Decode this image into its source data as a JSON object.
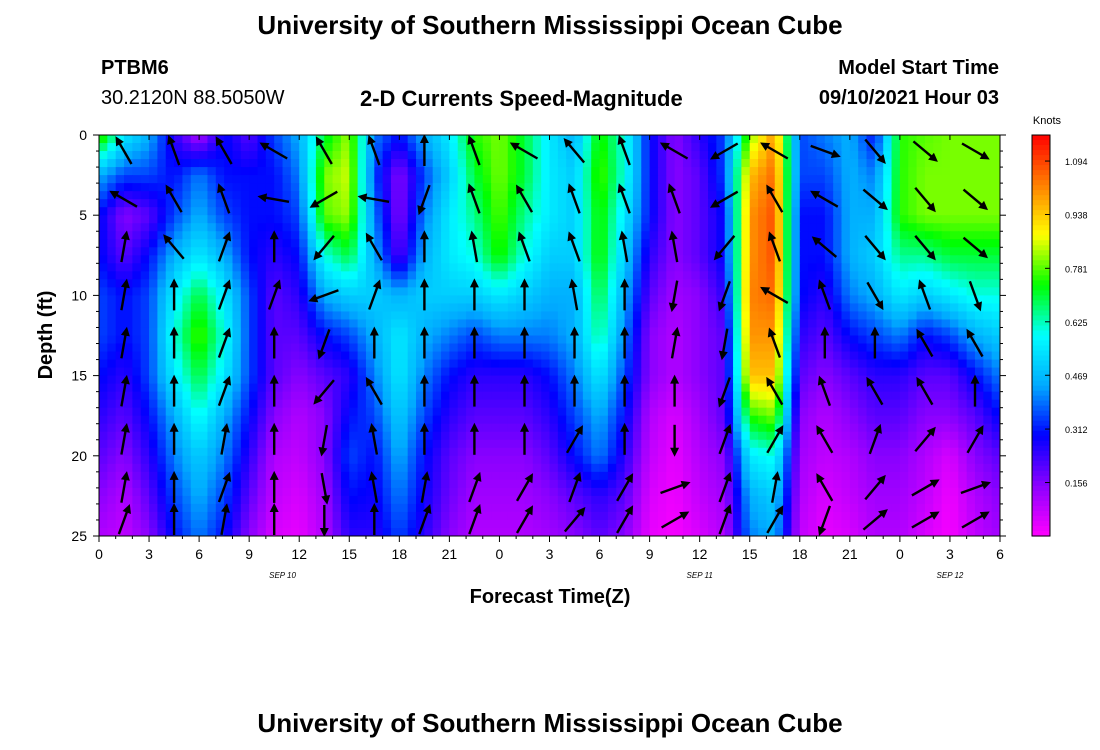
{
  "page": {
    "title_top": "University of Southern Mississippi Ocean Cube",
    "title_bottom": "University of Southern Mississippi Ocean Cube",
    "station_id": "PTBM6",
    "station_coords": "30.2120N  88.5050W",
    "plot_subtitle": "2-D Currents Speed-Magnitude",
    "model_start_label": "Model Start Time",
    "model_start_value": "09/10/2021 Hour 03"
  },
  "chart_data": {
    "type": "heatmap",
    "title": "2-D Currents Speed-Magnitude",
    "xlabel": "Forecast Time(Z)",
    "ylabel": "Depth (ft)",
    "x_range": [
      0,
      54
    ],
    "y_range": [
      0,
      25
    ],
    "y_inverted": true,
    "x_tick_labels": [
      "0",
      "3",
      "6",
      "9",
      "12",
      "15",
      "18",
      "21",
      "0",
      "3",
      "6",
      "9",
      "12",
      "15",
      "18",
      "21",
      "0",
      "3",
      "6"
    ],
    "y_tick_labels": [
      "0",
      "5",
      "10",
      "15",
      "20",
      "25"
    ],
    "date_labels": [
      {
        "text": "SEP 10",
        "x_hours": 11
      },
      {
        "text": "SEP 11",
        "x_hours": 36
      },
      {
        "text": "SEP 12",
        "x_hours": 51
      }
    ],
    "colorbar": {
      "unit": "Knots",
      "labels": [
        "1.094",
        "0.938",
        "0.781",
        "0.625",
        "0.469",
        "0.312",
        "0.156"
      ],
      "values": [
        1.094,
        0.938,
        0.781,
        0.625,
        0.469,
        0.312,
        0.156
      ],
      "range": [
        0.0,
        1.17
      ],
      "colors": [
        "#ff00ff",
        "#8c00ff",
        "#0000ff",
        "#00aaff",
        "#00ffff",
        "#00ff00",
        "#ffff00",
        "#ff8000",
        "#ff0000"
      ]
    },
    "speed_field": {
      "description": "Speed magnitude (knots) by forecast hour and depth",
      "hours": [
        0,
        1.5,
        3,
        4.5,
        6,
        7.5,
        9,
        10.5,
        12,
        13.5,
        15,
        16.5,
        18,
        19.5,
        21,
        22.5,
        24,
        25.5,
        27,
        28.5,
        30,
        31.5,
        33,
        34.5,
        36,
        37.5,
        39,
        40.5,
        42,
        43.5,
        45,
        46.5,
        48,
        49.5,
        51,
        52.5,
        54
      ],
      "depths_ft": [
        0,
        2.5,
        5,
        7.5,
        10,
        12.5,
        15,
        17.5,
        20,
        22.5,
        25
      ],
      "rows": [
        [
          0.8,
          0.55,
          0.45,
          0.25,
          0.1,
          0.3,
          0.2,
          0.35,
          0.45,
          0.7,
          0.82,
          0.4,
          0.3,
          0.45,
          0.55,
          0.75,
          0.8,
          0.7,
          0.55,
          0.45,
          0.75,
          0.6,
          0.3,
          0.15,
          0.25,
          0.35,
          0.8,
          1.0,
          0.35,
          0.4,
          0.45,
          0.3,
          0.75,
          0.78,
          0.8,
          0.8,
          0.8
        ],
        [
          0.45,
          0.35,
          0.35,
          0.3,
          0.4,
          0.3,
          0.3,
          0.3,
          0.4,
          0.8,
          0.85,
          0.35,
          0.15,
          0.35,
          0.5,
          0.7,
          0.8,
          0.7,
          0.55,
          0.5,
          0.78,
          0.6,
          0.3,
          0.15,
          0.2,
          0.35,
          0.95,
          1.05,
          0.35,
          0.35,
          0.45,
          0.4,
          0.75,
          0.8,
          0.8,
          0.8,
          0.8
        ],
        [
          0.3,
          0.15,
          0.2,
          0.35,
          0.45,
          0.35,
          0.3,
          0.3,
          0.35,
          0.78,
          0.82,
          0.4,
          0.15,
          0.4,
          0.55,
          0.65,
          0.78,
          0.65,
          0.55,
          0.5,
          0.75,
          0.55,
          0.3,
          0.15,
          0.2,
          0.3,
          1.0,
          1.08,
          0.3,
          0.3,
          0.45,
          0.45,
          0.75,
          0.8,
          0.8,
          0.8,
          0.8
        ],
        [
          0.3,
          0.2,
          0.3,
          0.45,
          0.55,
          0.45,
          0.3,
          0.25,
          0.3,
          0.6,
          0.7,
          0.45,
          0.2,
          0.45,
          0.55,
          0.6,
          0.75,
          0.6,
          0.5,
          0.5,
          0.75,
          0.5,
          0.25,
          0.15,
          0.2,
          0.3,
          1.0,
          1.08,
          0.3,
          0.3,
          0.45,
          0.5,
          0.65,
          0.65,
          0.7,
          0.7,
          0.7
        ],
        [
          0.35,
          0.3,
          0.35,
          0.55,
          0.7,
          0.55,
          0.35,
          0.2,
          0.25,
          0.45,
          0.5,
          0.5,
          0.45,
          0.5,
          0.5,
          0.5,
          0.55,
          0.5,
          0.45,
          0.45,
          0.7,
          0.45,
          0.2,
          0.12,
          0.15,
          0.25,
          1.02,
          1.05,
          0.3,
          0.25,
          0.4,
          0.45,
          0.55,
          0.5,
          0.55,
          0.6,
          0.6
        ],
        [
          0.35,
          0.3,
          0.35,
          0.6,
          0.78,
          0.6,
          0.35,
          0.2,
          0.2,
          0.3,
          0.35,
          0.45,
          0.55,
          0.45,
          0.4,
          0.35,
          0.4,
          0.4,
          0.4,
          0.45,
          0.65,
          0.4,
          0.15,
          0.1,
          0.15,
          0.2,
          1.0,
          1.0,
          0.25,
          0.2,
          0.3,
          0.35,
          0.4,
          0.3,
          0.35,
          0.45,
          0.5
        ],
        [
          0.3,
          0.25,
          0.35,
          0.55,
          0.7,
          0.55,
          0.35,
          0.2,
          0.15,
          0.2,
          0.25,
          0.4,
          0.55,
          0.4,
          0.3,
          0.25,
          0.25,
          0.25,
          0.3,
          0.4,
          0.55,
          0.35,
          0.15,
          0.1,
          0.15,
          0.2,
          0.95,
          0.95,
          0.2,
          0.15,
          0.2,
          0.25,
          0.25,
          0.2,
          0.2,
          0.3,
          0.4
        ],
        [
          0.25,
          0.2,
          0.3,
          0.45,
          0.6,
          0.45,
          0.3,
          0.15,
          0.1,
          0.15,
          0.3,
          0.35,
          0.5,
          0.35,
          0.25,
          0.2,
          0.2,
          0.2,
          0.25,
          0.35,
          0.45,
          0.3,
          0.1,
          0.05,
          0.12,
          0.2,
          0.75,
          0.8,
          0.15,
          0.1,
          0.15,
          0.2,
          0.2,
          0.15,
          0.15,
          0.2,
          0.3
        ],
        [
          0.2,
          0.15,
          0.25,
          0.4,
          0.5,
          0.4,
          0.25,
          0.1,
          0.08,
          0.15,
          0.35,
          0.3,
          0.45,
          0.3,
          0.2,
          0.15,
          0.15,
          0.15,
          0.2,
          0.3,
          0.4,
          0.25,
          0.08,
          0.03,
          0.1,
          0.15,
          0.55,
          0.6,
          0.12,
          0.08,
          0.1,
          0.15,
          0.15,
          0.1,
          0.05,
          0.15,
          0.2
        ],
        [
          0.15,
          0.1,
          0.2,
          0.35,
          0.45,
          0.35,
          0.2,
          0.08,
          0.05,
          0.12,
          0.3,
          0.28,
          0.4,
          0.28,
          0.18,
          0.12,
          0.12,
          0.12,
          0.15,
          0.2,
          0.25,
          0.2,
          0.05,
          0.02,
          0.08,
          0.12,
          0.45,
          0.5,
          0.1,
          0.05,
          0.08,
          0.12,
          0.12,
          0.08,
          0.02,
          0.1,
          0.15
        ],
        [
          0.1,
          0.08,
          0.15,
          0.3,
          0.4,
          0.3,
          0.15,
          0.05,
          0.03,
          0.1,
          0.25,
          0.25,
          0.35,
          0.25,
          0.15,
          0.1,
          0.1,
          0.1,
          0.12,
          0.15,
          0.2,
          0.15,
          0.03,
          0.01,
          0.05,
          0.1,
          0.4,
          0.45,
          0.08,
          0.03,
          0.05,
          0.1,
          0.1,
          0.05,
          0.01,
          0.08,
          0.12
        ]
      ]
    },
    "vectors": {
      "description": "Current direction arrows (degrees, 0 = up/north, clockwise) at each forecast hour column and depth",
      "hours": [
        1.5,
        4.5,
        7.5,
        10.5,
        13.5,
        16.5,
        19.5,
        22.5,
        25.5,
        28.5,
        31.5,
        34.5,
        37.5,
        40.5,
        43.5,
        46.5,
        49.5,
        52.5
      ],
      "depths_ft": [
        1,
        4,
        7,
        10,
        13,
        16,
        19,
        22,
        24
      ],
      "directions_deg": [
        [
          330,
          340,
          330,
          300,
          330,
          340,
          0,
          340,
          300,
          320,
          340,
          300,
          240,
          300,
          110,
          140,
          130,
          120
        ],
        [
          300,
          330,
          340,
          280,
          240,
          280,
          200,
          340,
          330,
          340,
          340,
          340,
          240,
          330,
          300,
          130,
          140,
          130
        ],
        [
          10,
          320,
          20,
          0,
          220,
          330,
          0,
          350,
          340,
          340,
          350,
          350,
          220,
          340,
          310,
          140,
          140,
          130
        ],
        [
          10,
          0,
          20,
          20,
          250,
          20,
          0,
          0,
          0,
          350,
          0,
          190,
          200,
          300,
          340,
          150,
          340,
          160
        ],
        [
          10,
          0,
          20,
          0,
          200,
          0,
          0,
          0,
          0,
          0,
          0,
          10,
          190,
          340,
          0,
          0,
          330,
          330
        ],
        [
          10,
          0,
          20,
          0,
          220,
          330,
          0,
          0,
          0,
          0,
          0,
          0,
          200,
          330,
          340,
          330,
          330,
          0
        ],
        [
          10,
          0,
          10,
          0,
          190,
          350,
          0,
          0,
          0,
          30,
          0,
          180,
          20,
          30,
          330,
          20,
          40,
          30
        ],
        [
          10,
          0,
          20,
          0,
          170,
          350,
          10,
          20,
          30,
          20,
          30,
          70,
          20,
          10,
          330,
          40,
          60,
          70
        ],
        [
          20,
          0,
          10,
          0,
          180,
          0,
          20,
          20,
          30,
          40,
          30,
          60,
          20,
          30,
          200,
          50,
          60,
          60
        ]
      ]
    },
    "grid": false,
    "legend": "right"
  }
}
